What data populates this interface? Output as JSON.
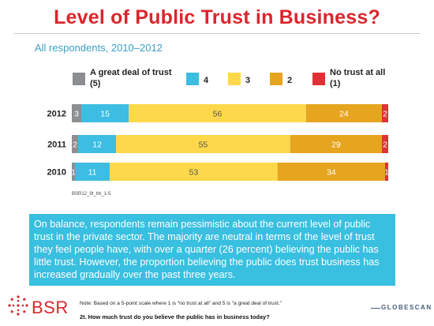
{
  "slide": {
    "title": "Level of Public Trust in Business?",
    "subtitle": "All respondents, 2010–2012",
    "source_code": "BSR12_9t_trk_1-5",
    "callout": "On balance, respondents remain pessimistic about the current level of public trust in the private sector. The majority are neutral in terms of the level of trust they feel people have, with over a quarter (26 percent) believing the public has little trust. However, the proportion believing the public does trust business has increased gradually over the past three years.",
    "footer_note": "Note: Based on a 5-point scale where 1 is “no trust at all” and 5 is “a great deal of trust.”",
    "footer_question": "2t. How much trust do you believe the public has in business today?",
    "brand_left": "BSR",
    "brand_right": "GLOBESCAN"
  },
  "chart_data": {
    "type": "bar",
    "orientation": "horizontal",
    "stacked": true,
    "categories": [
      "2012",
      "2011",
      "2010"
    ],
    "xlim": [
      0,
      100
    ],
    "series": [
      {
        "name": "A great deal of trust (5)",
        "values": [
          3,
          2,
          1
        ],
        "color": "#8c8e91"
      },
      {
        "name": "4",
        "values": [
          15,
          12,
          11
        ],
        "color": "#3dbde2"
      },
      {
        "name": "3",
        "values": [
          56,
          55,
          53
        ],
        "color": "#fdd84a"
      },
      {
        "name": "2",
        "values": [
          24,
          29,
          34
        ],
        "color": "#e6a51f"
      },
      {
        "name": "No trust at all (1)",
        "values": [
          2,
          2,
          1
        ],
        "color": "#e03136"
      }
    ],
    "legend_labels": [
      [
        "A great deal of trust",
        "(5)"
      ],
      [
        "4"
      ],
      [
        "3"
      ],
      [
        "2"
      ],
      [
        "No trust at all",
        "(1)"
      ]
    ],
    "legend_position": "top",
    "grid": false
  }
}
